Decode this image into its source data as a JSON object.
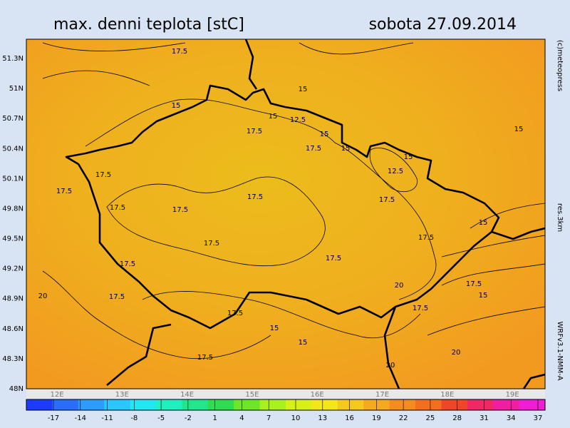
{
  "header": {
    "title": "max. denni teplota [stC]",
    "date": "sobota 27.09.2014"
  },
  "side_texts": {
    "copyright": "(c)meteopress",
    "resolution": "res.3km",
    "model": "WRFv3.1-NMM-A"
  },
  "map": {
    "lat_labels": [
      "51.3N",
      "51N",
      "50.7N",
      "50.4N",
      "50.1N",
      "49.8N",
      "49.5N",
      "49.2N",
      "48.9N",
      "48.6N",
      "48.3N",
      "48N"
    ],
    "lon_labels": [
      "12E",
      "13E",
      "14E",
      "15E",
      "16E",
      "17E",
      "18E",
      "19E"
    ],
    "contour_labels": [
      "17.5",
      "15",
      "15",
      "15",
      "12.5",
      "15",
      "17.5",
      "17.5",
      "15",
      "12.5",
      "15",
      "15",
      "17.5",
      "17.5",
      "17.5",
      "17.5",
      "17.5",
      "17.5",
      "17.5",
      "17.5",
      "17.5",
      "15",
      "17.5",
      "17.5",
      "20",
      "17.5",
      "15",
      "15",
      "17.5",
      "17.5",
      "20",
      "20",
      "20",
      "17.5",
      "15"
    ]
  },
  "colorbar": {
    "ticks": [
      -17,
      -14,
      -11,
      -8,
      -5,
      -2,
      1,
      4,
      7,
      10,
      13,
      16,
      19,
      22,
      25,
      28,
      31,
      34,
      37
    ],
    "colors": [
      "#1e3cff",
      "#2a6dff",
      "#2d9bff",
      "#28c8ff",
      "#22e6f0",
      "#20f0c0",
      "#22e68c",
      "#30dc50",
      "#6ee628",
      "#a8f01e",
      "#d8f01a",
      "#f5e61c",
      "#f5c81e",
      "#f5aa1e",
      "#f58c1e",
      "#f56e1e",
      "#f04628",
      "#f02864",
      "#f01ea0",
      "#f01ed2"
    ]
  }
}
